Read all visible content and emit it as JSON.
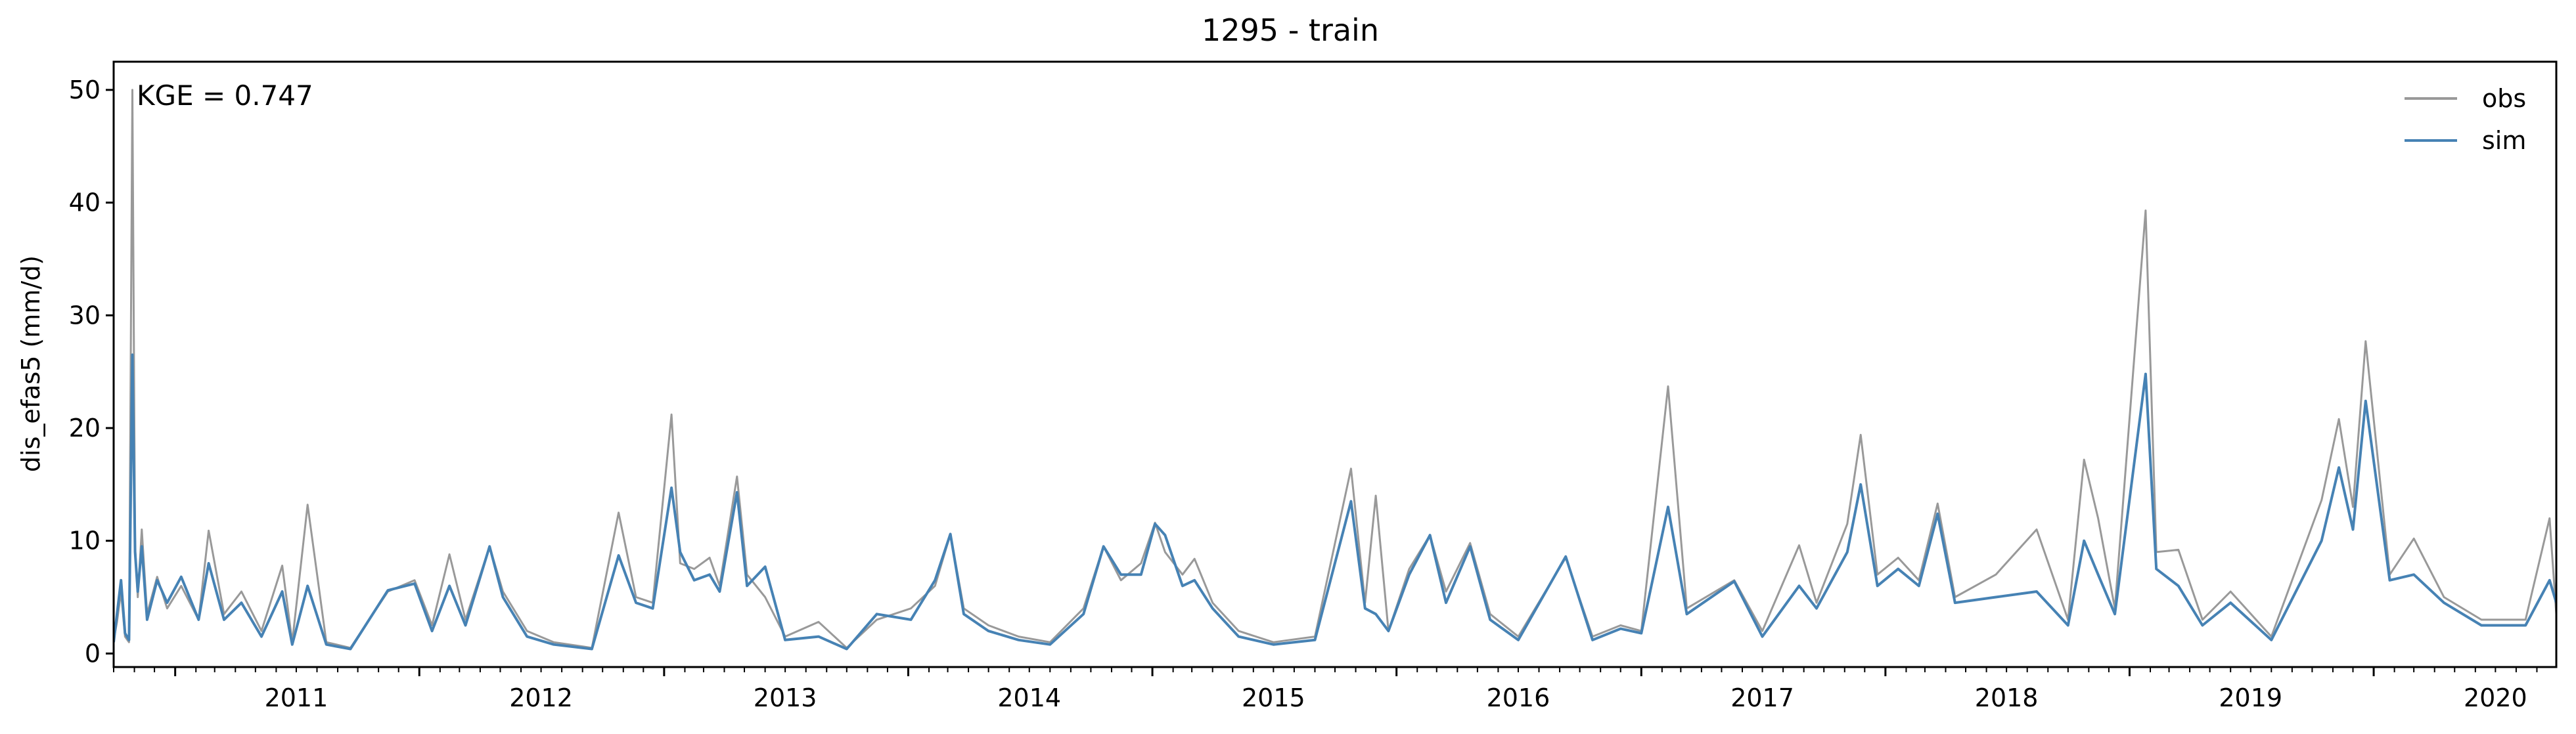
{
  "chart_data": {
    "type": "line",
    "title": "1295 - train",
    "xlabel": "",
    "ylabel": "dis_efas5 (mm/d)",
    "annotation": "KGE = 0.747",
    "xlim": [
      "2010-10-01",
      "2020-09-30"
    ],
    "ylim": [
      -1.2,
      52.5
    ],
    "y_ticks": [
      0,
      10,
      20,
      30,
      40,
      50
    ],
    "x_ticks": [
      "2011",
      "2012",
      "2013",
      "2014",
      "2015",
      "2016",
      "2017",
      "2018",
      "2019",
      "2020"
    ],
    "x_tick_dates": [
      "2011-01-01",
      "2012-01-01",
      "2013-01-01",
      "2014-01-01",
      "2015-01-01",
      "2016-01-01",
      "2017-01-01",
      "2018-01-01",
      "2019-01-01",
      "2020-01-01"
    ],
    "grid": false,
    "legend_position": "top-right",
    "series": [
      {
        "name": "obs",
        "color": "#999999",
        "points": [
          [
            "2010-10-01",
            1.2
          ],
          [
            "2010-10-06",
            2.8
          ],
          [
            "2010-10-12",
            5.5
          ],
          [
            "2010-10-18",
            1.5
          ],
          [
            "2010-10-24",
            1.0
          ],
          [
            "2010-10-29",
            50.0
          ],
          [
            "2010-11-02",
            9.5
          ],
          [
            "2010-11-06",
            5.0
          ],
          [
            "2010-11-12",
            11.0
          ],
          [
            "2010-11-20",
            3.5
          ],
          [
            "2010-12-05",
            6.8
          ],
          [
            "2010-12-20",
            4.0
          ],
          [
            "2011-01-10",
            6.0
          ],
          [
            "2011-02-05",
            3.0
          ],
          [
            "2011-02-20",
            10.9
          ],
          [
            "2011-03-15",
            3.5
          ],
          [
            "2011-04-10",
            5.5
          ],
          [
            "2011-05-10",
            2.0
          ],
          [
            "2011-06-10",
            7.8
          ],
          [
            "2011-06-25",
            1.0
          ],
          [
            "2011-07-18",
            13.2
          ],
          [
            "2011-08-15",
            1.0
          ],
          [
            "2011-09-20",
            0.5
          ],
          [
            "2011-11-15",
            5.5
          ],
          [
            "2011-12-25",
            6.5
          ],
          [
            "2012-01-20",
            2.5
          ],
          [
            "2012-02-15",
            8.8
          ],
          [
            "2012-03-10",
            3.0
          ],
          [
            "2012-04-15",
            9.5
          ],
          [
            "2012-05-05",
            5.5
          ],
          [
            "2012-06-10",
            2.0
          ],
          [
            "2012-07-20",
            1.0
          ],
          [
            "2012-09-15",
            0.5
          ],
          [
            "2012-10-25",
            12.5
          ],
          [
            "2012-11-20",
            5.0
          ],
          [
            "2012-12-15",
            4.5
          ],
          [
            "2013-01-12",
            21.2
          ],
          [
            "2013-01-25",
            8.0
          ],
          [
            "2013-02-15",
            7.5
          ],
          [
            "2013-03-10",
            8.5
          ],
          [
            "2013-03-25",
            6.0
          ],
          [
            "2013-04-20",
            15.7
          ],
          [
            "2013-05-05",
            7.0
          ],
          [
            "2013-06-01",
            5.0
          ],
          [
            "2013-07-01",
            1.5
          ],
          [
            "2013-08-20",
            2.8
          ],
          [
            "2013-10-01",
            0.5
          ],
          [
            "2013-11-15",
            3.0
          ],
          [
            "2014-01-05",
            4.0
          ],
          [
            "2014-02-10",
            6.0
          ],
          [
            "2014-03-05",
            10.6
          ],
          [
            "2014-03-25",
            4.0
          ],
          [
            "2014-05-01",
            2.5
          ],
          [
            "2014-06-15",
            1.5
          ],
          [
            "2014-08-01",
            1.0
          ],
          [
            "2014-09-20",
            4.0
          ],
          [
            "2014-10-20",
            9.5
          ],
          [
            "2014-11-15",
            6.5
          ],
          [
            "2014-12-15",
            8.0
          ],
          [
            "2015-01-05",
            11.6
          ],
          [
            "2015-01-20",
            9.0
          ],
          [
            "2015-02-15",
            7.0
          ],
          [
            "2015-03-05",
            8.4
          ],
          [
            "2015-04-01",
            4.5
          ],
          [
            "2015-05-10",
            2.0
          ],
          [
            "2015-07-01",
            1.0
          ],
          [
            "2015-09-01",
            1.5
          ],
          [
            "2015-10-25",
            16.4
          ],
          [
            "2015-11-15",
            4.5
          ],
          [
            "2015-12-01",
            14.0
          ],
          [
            "2015-12-20",
            2.0
          ],
          [
            "2016-01-20",
            7.5
          ],
          [
            "2016-02-20",
            10.5
          ],
          [
            "2016-03-15",
            5.5
          ],
          [
            "2016-04-20",
            9.8
          ],
          [
            "2016-05-20",
            3.5
          ],
          [
            "2016-07-01",
            1.5
          ],
          [
            "2016-09-10",
            8.5
          ],
          [
            "2016-10-20",
            1.5
          ],
          [
            "2016-12-01",
            2.5
          ],
          [
            "2017-01-01",
            2.0
          ],
          [
            "2017-02-10",
            23.7
          ],
          [
            "2017-03-10",
            4.0
          ],
          [
            "2017-05-20",
            6.5
          ],
          [
            "2017-07-01",
            2.0
          ],
          [
            "2017-08-25",
            9.6
          ],
          [
            "2017-09-20",
            4.5
          ],
          [
            "2017-11-05",
            11.5
          ],
          [
            "2017-11-25",
            19.4
          ],
          [
            "2017-12-20",
            7.0
          ],
          [
            "2018-01-20",
            8.5
          ],
          [
            "2018-02-20",
            6.5
          ],
          [
            "2018-03-20",
            13.3
          ],
          [
            "2018-04-15",
            5.0
          ],
          [
            "2018-06-15",
            7.0
          ],
          [
            "2018-08-15",
            11.0
          ],
          [
            "2018-10-01",
            3.0
          ],
          [
            "2018-10-25",
            17.2
          ],
          [
            "2018-11-15",
            12.0
          ],
          [
            "2018-12-10",
            4.0
          ],
          [
            "2019-01-25",
            39.3
          ],
          [
            "2019-02-10",
            9.0
          ],
          [
            "2019-03-15",
            9.2
          ],
          [
            "2019-04-20",
            3.0
          ],
          [
            "2019-06-01",
            5.5
          ],
          [
            "2019-08-01",
            1.5
          ],
          [
            "2019-10-15",
            13.6
          ],
          [
            "2019-11-10",
            20.8
          ],
          [
            "2019-12-01",
            13.0
          ],
          [
            "2019-12-20",
            27.7
          ],
          [
            "2020-01-25",
            7.0
          ],
          [
            "2020-03-01",
            10.2
          ],
          [
            "2020-04-15",
            5.0
          ],
          [
            "2020-06-10",
            3.0
          ],
          [
            "2020-08-15",
            3.0
          ],
          [
            "2020-09-20",
            12.0
          ],
          [
            "2020-09-30",
            3.5
          ]
        ]
      },
      {
        "name": "sim",
        "color": "#4682b4",
        "points": [
          [
            "2010-10-01",
            1.0
          ],
          [
            "2010-10-06",
            3.5
          ],
          [
            "2010-10-12",
            6.5
          ],
          [
            "2010-10-18",
            1.8
          ],
          [
            "2010-10-24",
            1.2
          ],
          [
            "2010-10-29",
            26.5
          ],
          [
            "2010-11-02",
            9.0
          ],
          [
            "2010-11-06",
            5.5
          ],
          [
            "2010-11-12",
            9.5
          ],
          [
            "2010-11-20",
            3.0
          ],
          [
            "2010-12-05",
            6.5
          ],
          [
            "2010-12-20",
            4.5
          ],
          [
            "2011-01-10",
            6.8
          ],
          [
            "2011-02-05",
            3.0
          ],
          [
            "2011-02-20",
            8.0
          ],
          [
            "2011-03-15",
            3.0
          ],
          [
            "2011-04-10",
            4.5
          ],
          [
            "2011-05-10",
            1.5
          ],
          [
            "2011-06-10",
            5.5
          ],
          [
            "2011-06-25",
            0.8
          ],
          [
            "2011-07-18",
            6.0
          ],
          [
            "2011-08-15",
            0.8
          ],
          [
            "2011-09-20",
            0.4
          ],
          [
            "2011-11-15",
            5.6
          ],
          [
            "2011-12-25",
            6.2
          ],
          [
            "2012-01-20",
            2.0
          ],
          [
            "2012-02-15",
            6.0
          ],
          [
            "2012-03-10",
            2.5
          ],
          [
            "2012-04-15",
            9.5
          ],
          [
            "2012-05-05",
            5.0
          ],
          [
            "2012-06-10",
            1.5
          ],
          [
            "2012-07-20",
            0.8
          ],
          [
            "2012-09-15",
            0.4
          ],
          [
            "2012-10-25",
            8.7
          ],
          [
            "2012-11-20",
            4.5
          ],
          [
            "2012-12-15",
            4.0
          ],
          [
            "2013-01-12",
            14.7
          ],
          [
            "2013-01-25",
            9.0
          ],
          [
            "2013-02-15",
            6.5
          ],
          [
            "2013-03-10",
            7.0
          ],
          [
            "2013-03-25",
            5.5
          ],
          [
            "2013-04-20",
            14.3
          ],
          [
            "2013-05-05",
            6.0
          ],
          [
            "2013-06-01",
            7.7
          ],
          [
            "2013-07-01",
            1.2
          ],
          [
            "2013-08-20",
            1.5
          ],
          [
            "2013-10-01",
            0.4
          ],
          [
            "2013-11-15",
            3.5
          ],
          [
            "2014-01-05",
            3.0
          ],
          [
            "2014-02-10",
            6.5
          ],
          [
            "2014-03-05",
            10.6
          ],
          [
            "2014-03-25",
            3.5
          ],
          [
            "2014-05-01",
            2.0
          ],
          [
            "2014-06-15",
            1.2
          ],
          [
            "2014-08-01",
            0.8
          ],
          [
            "2014-09-20",
            3.5
          ],
          [
            "2014-10-20",
            9.5
          ],
          [
            "2014-11-15",
            7.0
          ],
          [
            "2014-12-15",
            7.0
          ],
          [
            "2015-01-05",
            11.5
          ],
          [
            "2015-01-20",
            10.5
          ],
          [
            "2015-02-15",
            6.0
          ],
          [
            "2015-03-05",
            6.5
          ],
          [
            "2015-04-01",
            4.0
          ],
          [
            "2015-05-10",
            1.5
          ],
          [
            "2015-07-01",
            0.8
          ],
          [
            "2015-09-01",
            1.2
          ],
          [
            "2015-10-25",
            13.5
          ],
          [
            "2015-11-15",
            4.0
          ],
          [
            "2015-12-01",
            3.5
          ],
          [
            "2015-12-20",
            2.0
          ],
          [
            "2016-01-20",
            7.0
          ],
          [
            "2016-02-20",
            10.5
          ],
          [
            "2016-03-15",
            4.5
          ],
          [
            "2016-04-20",
            9.5
          ],
          [
            "2016-05-20",
            3.0
          ],
          [
            "2016-07-01",
            1.2
          ],
          [
            "2016-09-10",
            8.6
          ],
          [
            "2016-10-20",
            1.2
          ],
          [
            "2016-12-01",
            2.2
          ],
          [
            "2017-01-01",
            1.8
          ],
          [
            "2017-02-10",
            13.0
          ],
          [
            "2017-03-10",
            3.5
          ],
          [
            "2017-05-20",
            6.4
          ],
          [
            "2017-07-01",
            1.5
          ],
          [
            "2017-08-25",
            6.0
          ],
          [
            "2017-09-20",
            4.0
          ],
          [
            "2017-11-05",
            9.0
          ],
          [
            "2017-11-25",
            15.0
          ],
          [
            "2017-12-20",
            6.0
          ],
          [
            "2018-01-20",
            7.5
          ],
          [
            "2018-02-20",
            6.0
          ],
          [
            "2018-03-20",
            12.4
          ],
          [
            "2018-04-15",
            4.5
          ],
          [
            "2018-06-15",
            5.0
          ],
          [
            "2018-08-15",
            5.5
          ],
          [
            "2018-10-01",
            2.5
          ],
          [
            "2018-10-25",
            10.0
          ],
          [
            "2018-11-15",
            7.0
          ],
          [
            "2018-12-10",
            3.5
          ],
          [
            "2019-01-25",
            24.8
          ],
          [
            "2019-02-10",
            7.5
          ],
          [
            "2019-03-15",
            6.0
          ],
          [
            "2019-04-20",
            2.5
          ],
          [
            "2019-06-01",
            4.5
          ],
          [
            "2019-08-01",
            1.2
          ],
          [
            "2019-10-15",
            10.0
          ],
          [
            "2019-11-10",
            16.5
          ],
          [
            "2019-12-01",
            11.0
          ],
          [
            "2019-12-20",
            22.4
          ],
          [
            "2020-01-25",
            6.5
          ],
          [
            "2020-03-01",
            7.0
          ],
          [
            "2020-04-15",
            4.5
          ],
          [
            "2020-06-10",
            2.5
          ],
          [
            "2020-08-15",
            2.5
          ],
          [
            "2020-09-20",
            6.5
          ],
          [
            "2020-09-30",
            4.5
          ]
        ]
      }
    ]
  }
}
